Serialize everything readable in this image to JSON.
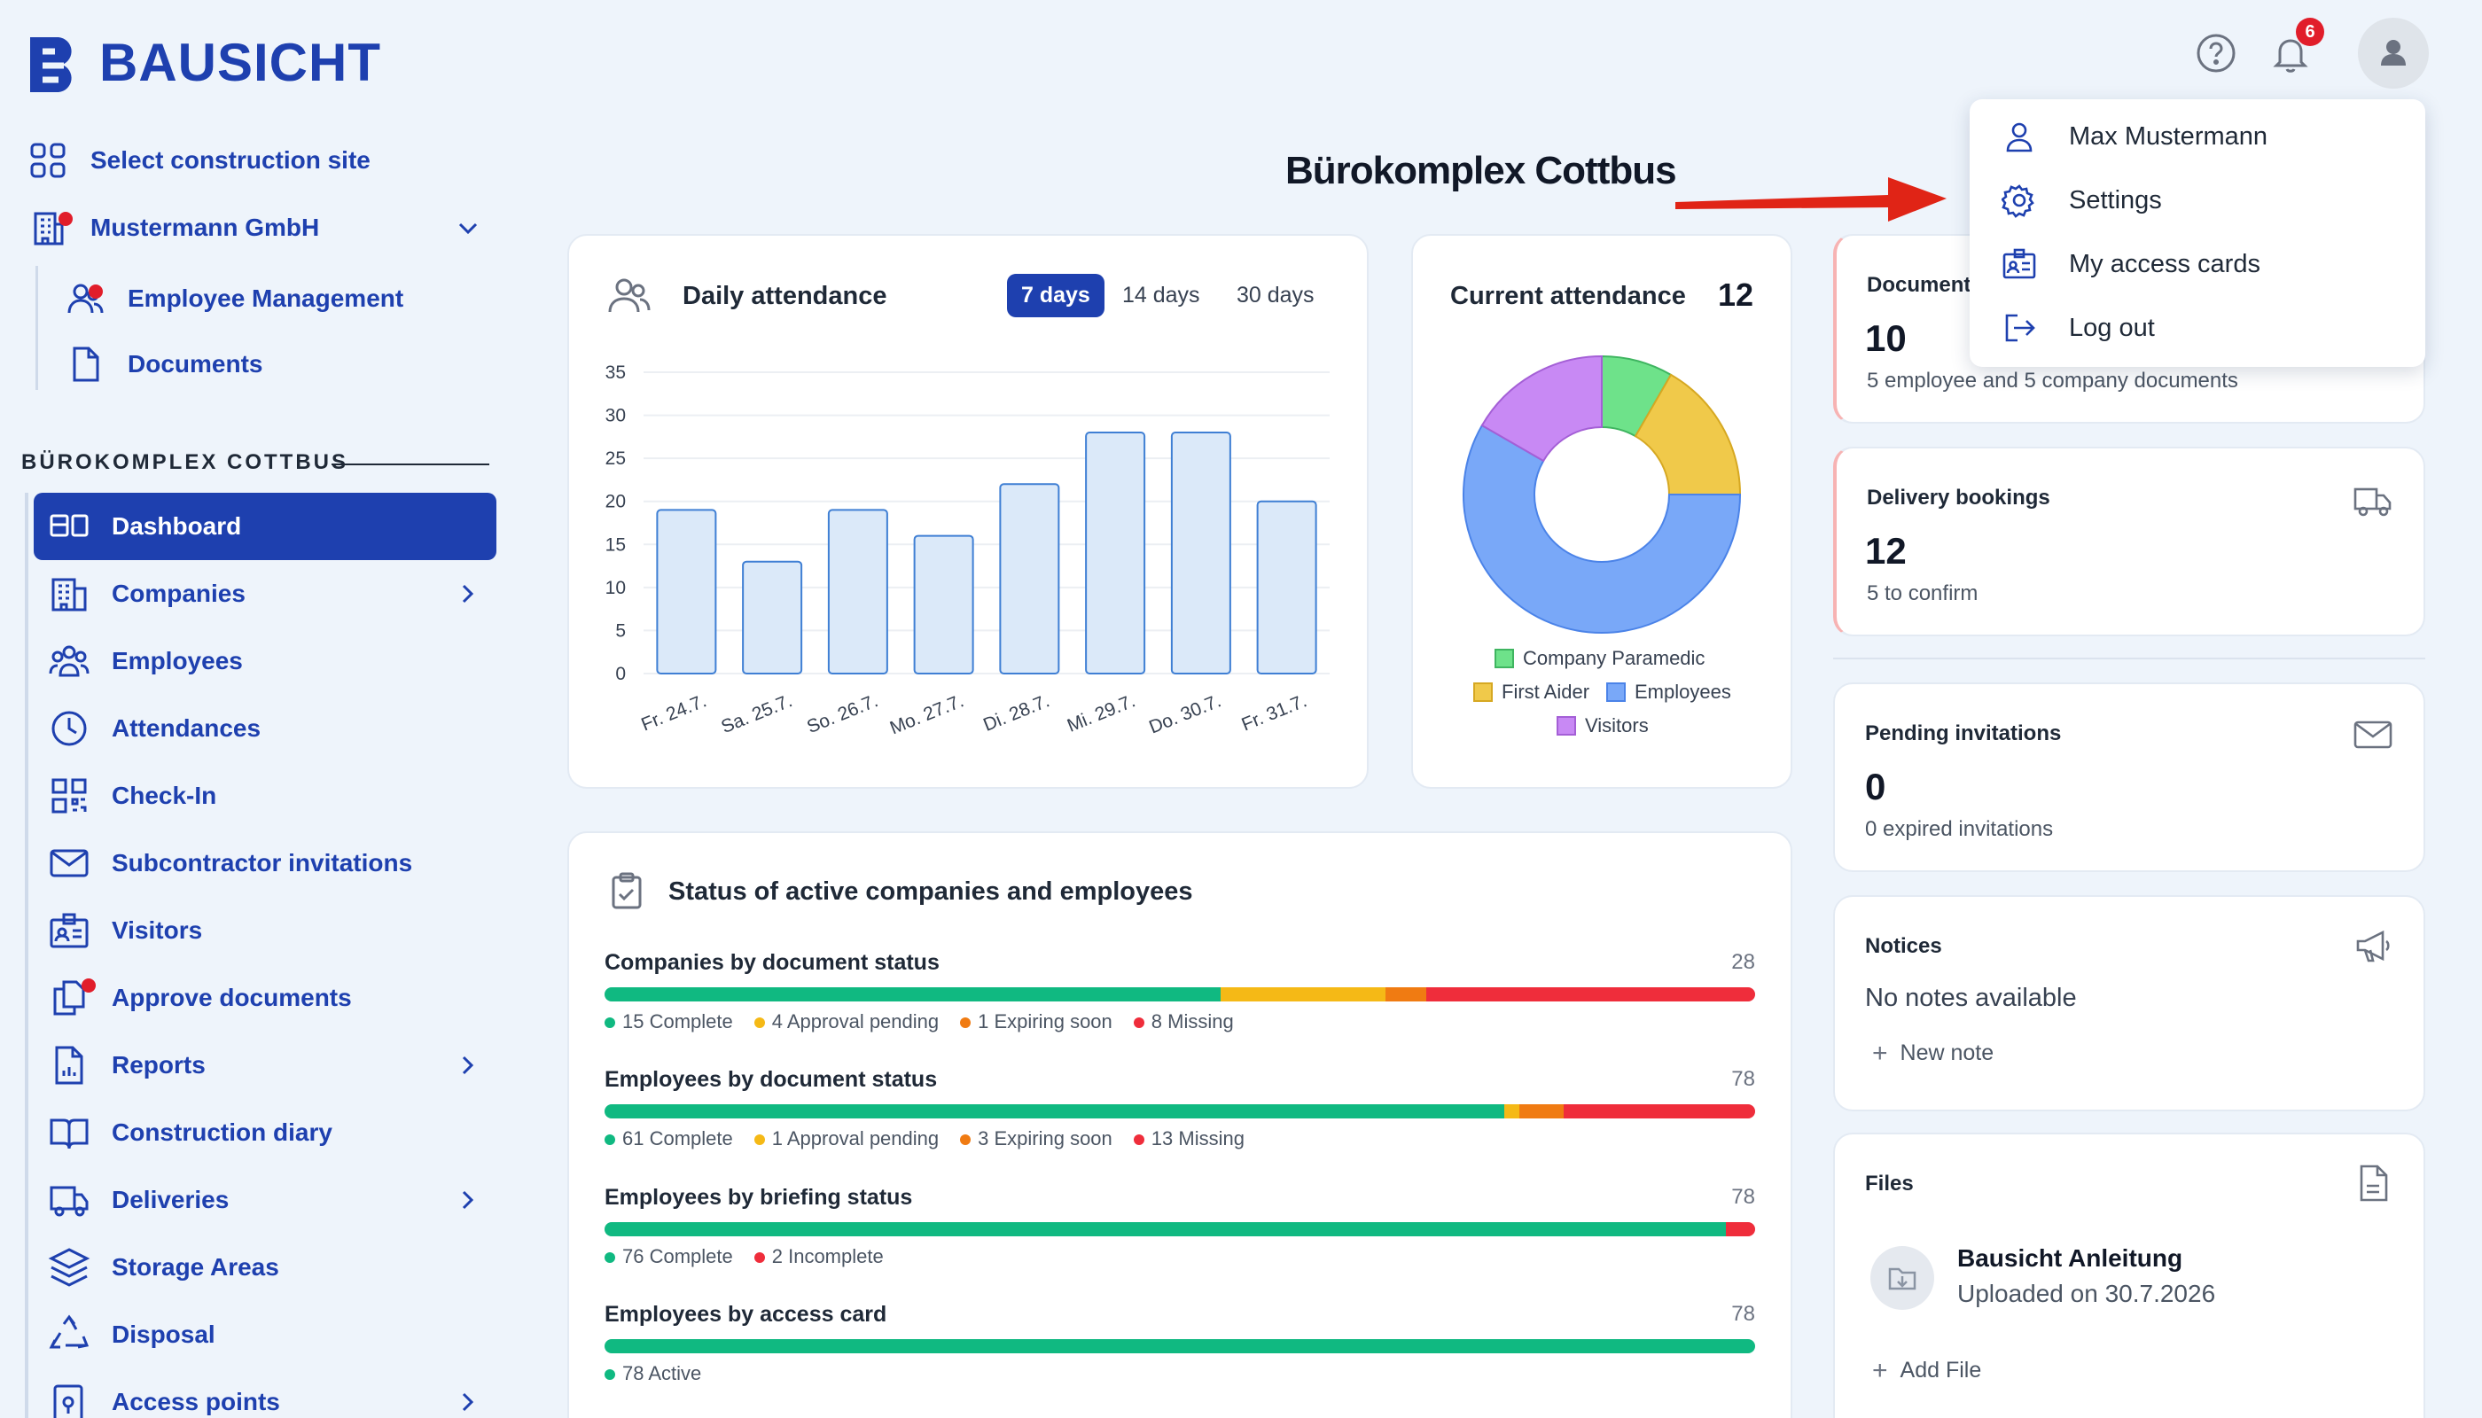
{
  "brand": {
    "name": "BAUSICHT"
  },
  "header": {
    "notification_count": "6"
  },
  "annotation": {
    "site_name": "Bürokomplex Cottbus"
  },
  "sidebar": {
    "select_site": "Select construction site",
    "company": "Mustermann GmbH",
    "company_items": [
      {
        "label": "Employee Management"
      },
      {
        "label": "Documents"
      }
    ],
    "section_title": "BÜROKOMPLEX COTTBUS",
    "items": [
      {
        "label": "Dashboard"
      },
      {
        "label": "Companies"
      },
      {
        "label": "Employees"
      },
      {
        "label": "Attendances"
      },
      {
        "label": "Check-In"
      },
      {
        "label": "Subcontractor invitations"
      },
      {
        "label": "Visitors"
      },
      {
        "label": "Approve documents"
      },
      {
        "label": "Reports"
      },
      {
        "label": "Construction diary"
      },
      {
        "label": "Deliveries"
      },
      {
        "label": "Storage Areas"
      },
      {
        "label": "Disposal"
      },
      {
        "label": "Access points"
      }
    ]
  },
  "user_menu": {
    "items": [
      {
        "label": "Max Mustermann",
        "icon": "user-icon"
      },
      {
        "label": "Settings",
        "icon": "gear-icon"
      },
      {
        "label": "My access cards",
        "icon": "id-card-icon"
      },
      {
        "label": "Log out",
        "icon": "logout-icon"
      }
    ]
  },
  "attendance": {
    "title": "Daily attendance",
    "ranges": [
      "7 days",
      "14 days",
      "30 days"
    ],
    "selected_range": "7 days"
  },
  "current_attendance": {
    "title": "Current attendance",
    "count": "12",
    "legend": [
      "Company Paramedic",
      "First Aider",
      "Employees",
      "Visitors"
    ]
  },
  "stats": {
    "documents": {
      "label": "Document",
      "value": "10",
      "sub": "5 employee and 5 company documents"
    },
    "deliveries": {
      "label": "Delivery bookings",
      "value": "12",
      "sub": "5 to confirm"
    },
    "invitations": {
      "label": "Pending invitations",
      "value": "0",
      "sub": "0 expired invitations"
    },
    "notices": {
      "label": "Notices",
      "empty": "No notes available",
      "action": "New note"
    },
    "files": {
      "label": "Files",
      "file_name": "Bausicht Anleitung",
      "file_meta": "Uploaded on 30.7.2026",
      "action": "Add File"
    }
  },
  "status_card": {
    "title": "Status of active companies and employees",
    "rows": [
      {
        "label": "Companies by document status",
        "total": "28",
        "segments": [
          {
            "label": "15 Complete",
            "value": 15,
            "color": "#10b981"
          },
          {
            "label": "4 Approval pending",
            "value": 4,
            "color": "#f5b916"
          },
          {
            "label": "1 Expiring soon",
            "value": 1,
            "color": "#f07b12"
          },
          {
            "label": "8 Missing",
            "value": 8,
            "color": "#ef2d3b"
          }
        ]
      },
      {
        "label": "Employees by document status",
        "total": "78",
        "segments": [
          {
            "label": "61 Complete",
            "value": 61,
            "color": "#10b981"
          },
          {
            "label": "1 Approval pending",
            "value": 1,
            "color": "#f5b916"
          },
          {
            "label": "3 Expiring soon",
            "value": 3,
            "color": "#f07b12"
          },
          {
            "label": "13 Missing",
            "value": 13,
            "color": "#ef2d3b"
          }
        ]
      },
      {
        "label": "Employees by briefing status",
        "total": "78",
        "segments": [
          {
            "label": "76 Complete",
            "value": 76,
            "color": "#10b981"
          },
          {
            "label": "2 Incomplete",
            "value": 2,
            "color": "#ef2d3b"
          }
        ]
      },
      {
        "label": "Employees by access card",
        "total": "78",
        "segments": [
          {
            "label": "78 Active",
            "value": 78,
            "color": "#10b981"
          }
        ]
      }
    ]
  },
  "chart_data": [
    {
      "type": "bar",
      "title": "Daily attendance",
      "categories": [
        "Fr. 24.7.",
        "Sa. 25.7.",
        "So. 26.7.",
        "Mo. 27.7.",
        "Di. 28.7.",
        "Mi. 29.7.",
        "Do. 30.7.",
        "Fr. 31.7."
      ],
      "values": [
        19,
        13,
        19,
        16,
        22,
        28,
        28,
        20
      ],
      "ylim": [
        0,
        35
      ],
      "yticks": [
        0,
        5,
        10,
        15,
        20,
        25,
        30,
        35
      ],
      "grid": true
    },
    {
      "type": "pie",
      "title": "Current attendance",
      "categories": [
        "Company Paramedic",
        "First Aider",
        "Employees",
        "Visitors"
      ],
      "values": [
        1,
        2,
        7,
        2
      ],
      "colors": [
        "#6ee28a",
        "#f0c94a",
        "#79a8f8",
        "#c889f4"
      ]
    }
  ]
}
